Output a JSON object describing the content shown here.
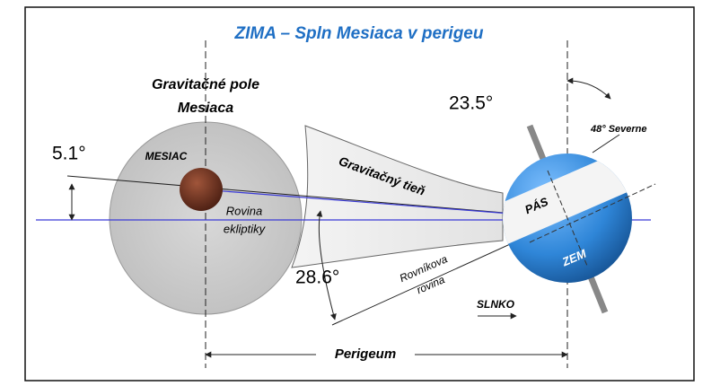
{
  "title": "ZIMA – Spln Mesiaca v perigeu",
  "moon_field": {
    "line1": "Gravitačné pole",
    "line2": "Mesiaca"
  },
  "moon": "MESIAC",
  "moon_tilt": "5.1°",
  "ecliptic": {
    "line1": "Rovina",
    "line2": "ekliptiky"
  },
  "shadow": "Gravitačný tieň",
  "axis_tilt": "23.5°",
  "latitude": "48° Severne",
  "belt": "PÁS",
  "earth": "ZEM",
  "equator_angle": "28.6°",
  "equator_plane": {
    "line1": "Rovníkova",
    "line2": "rovina"
  },
  "sun": "SLNKO",
  "perigee": "Perigeum"
}
